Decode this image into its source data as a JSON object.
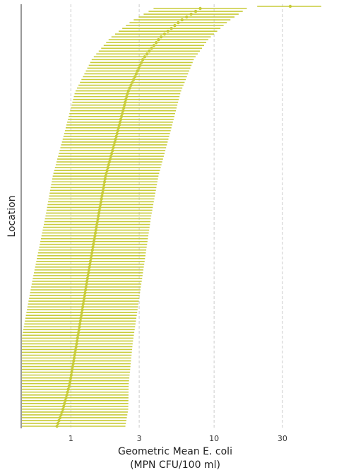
{
  "chart_data": {
    "type": "forest",
    "xlabel_line1": "Geometric Mean E. coli",
    "xlabel_line2": "(MPN CFU/100 ml)",
    "ylabel": "Location",
    "x_scale": "log",
    "xlim": [
      0.45,
      65
    ],
    "x_ticks": [
      1,
      3,
      10,
      30
    ],
    "x_tick_labels": [
      "1",
      "3",
      "10",
      "30"
    ],
    "grid": "vertical dashed at ticks",
    "color": "#c8cc3a",
    "n_locations": 148,
    "outlier": {
      "mean": 34,
      "low": 20,
      "high": 56
    },
    "curve": [
      {
        "f": 0.0,
        "mean": 0.8,
        "half_width": 1.1
      },
      {
        "f": 0.04,
        "mean": 0.88,
        "half_width": 1.05
      },
      {
        "f": 0.1,
        "mean": 0.98,
        "half_width": 0.95
      },
      {
        "f": 0.2,
        "mean": 1.1,
        "half_width": 0.9
      },
      {
        "f": 0.35,
        "mean": 1.3,
        "half_width": 0.88
      },
      {
        "f": 0.5,
        "mean": 1.55,
        "half_width": 0.85
      },
      {
        "f": 0.6,
        "mean": 1.75,
        "half_width": 0.85
      },
      {
        "f": 0.7,
        "mean": 2.1,
        "half_width": 0.85
      },
      {
        "f": 0.8,
        "mean": 2.5,
        "half_width": 0.85
      },
      {
        "f": 0.88,
        "mean": 3.2,
        "half_width": 0.82
      },
      {
        "f": 0.93,
        "mean": 4.2,
        "half_width": 0.8
      },
      {
        "f": 0.97,
        "mean": 5.8,
        "half_width": 0.78
      },
      {
        "f": 1.0,
        "mean": 8.0,
        "half_width": 0.75
      }
    ]
  }
}
